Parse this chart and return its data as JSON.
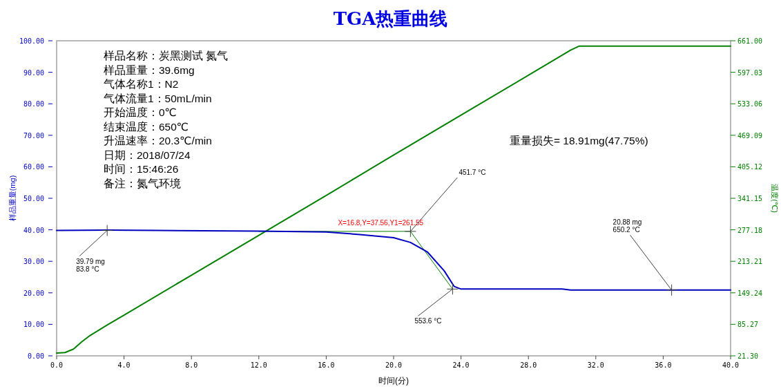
{
  "chart_data": {
    "type": "line",
    "title": "TGA热重曲线",
    "xlabel": "时间(分)",
    "ylabel": "样品重量(mg)",
    "y2label": "温度(℃)",
    "xlim": [
      0,
      40
    ],
    "ylim": [
      0,
      100
    ],
    "y2lim": [
      21.3,
      661.0
    ],
    "xticks": [
      {
        "value": 0,
        "label": "0.0"
      },
      {
        "value": 4,
        "label": "4.0"
      },
      {
        "value": 8,
        "label": "8.0"
      },
      {
        "value": 12,
        "label": "12.0"
      },
      {
        "value": 16,
        "label": "16.0"
      },
      {
        "value": 20,
        "label": "20.0"
      },
      {
        "value": 24,
        "label": "24.0"
      },
      {
        "value": 28,
        "label": "28.0"
      },
      {
        "value": 32,
        "label": "32.0"
      },
      {
        "value": 36,
        "label": "36.0"
      },
      {
        "value": 40,
        "label": "40.0"
      }
    ],
    "yticks": [
      {
        "value": 0,
        "label": "0.00"
      },
      {
        "value": 10,
        "label": "10.00"
      },
      {
        "value": 20,
        "label": "20.00"
      },
      {
        "value": 30,
        "label": "30.00"
      },
      {
        "value": 40,
        "label": "40.00"
      },
      {
        "value": 50,
        "label": "50.00"
      },
      {
        "value": 60,
        "label": "60.00"
      },
      {
        "value": 70,
        "label": "70.00"
      },
      {
        "value": 80,
        "label": "80.00"
      },
      {
        "value": 90,
        "label": "90.00"
      },
      {
        "value": 100,
        "label": "100.00"
      }
    ],
    "y2ticks": [
      {
        "value": 21.3,
        "label": "21.30"
      },
      85.27,
      149.24,
      213.21,
      277.18,
      341.15,
      405.12,
      469.09,
      533.06,
      597.03,
      {
        "value": 661.0,
        "label": "661.00"
      }
    ],
    "series": [
      {
        "color": "#008000",
        "axis": "y2",
        "x": [
          0,
          0.5,
          1,
          1.5,
          2,
          3,
          4,
          8,
          12,
          16,
          20,
          24,
          28,
          30.5,
          31,
          40
        ],
        "values": [
          27,
          28,
          35,
          50,
          63,
          84,
          104,
          185,
          266,
          347,
          429,
          510,
          591,
          642,
          650,
          650
        ]
      },
      {
        "color": "#008000",
        "x": [
          12,
          21.0,
          23.5
        ],
        "values": [
          39.5,
          39.5,
          21.2
        ]
      },
      {
        "color": "#0000c0",
        "x": [
          0,
          3,
          6,
          12,
          16,
          18,
          20,
          21,
          22,
          23,
          23.6,
          24,
          30,
          30.5,
          40
        ],
        "values": [
          39.8,
          39.9,
          39.8,
          39.6,
          39.3,
          38.5,
          37.5,
          36,
          33,
          27,
          22,
          21.2,
          21.2,
          20.9,
          20.9
        ]
      }
    ],
    "annotations": [
      "样品名称：炭黑测试 氮气",
      "样品重量：39.6mg",
      "气体名称1：N2",
      "气体流量1：50mL/min",
      "开始温度：0℃",
      "结束温度：650℃",
      "升温速率：20.3℃/min",
      "日期：2018/07/24",
      "时间：15:46:26",
      "备注：氮气环境",
      "重量损失= 18.91mg(47.75%)",
      {
        "text": "39.79 mg\n83.8 °C",
        "x": 3,
        "y": 39.79
      },
      {
        "text": "451.7 °C",
        "x": 21.0,
        "y": 39.5
      },
      {
        "text": "X=16.8,Y=37.56,Y1=261.55",
        "x": 21.0,
        "y": 39.5
      },
      {
        "text": "553.6 °C",
        "x": 23.5,
        "y": 21.2
      },
      {
        "text": "20.88 mg\n650.2 °C",
        "x": 36.5,
        "y": 20.88
      }
    ]
  }
}
